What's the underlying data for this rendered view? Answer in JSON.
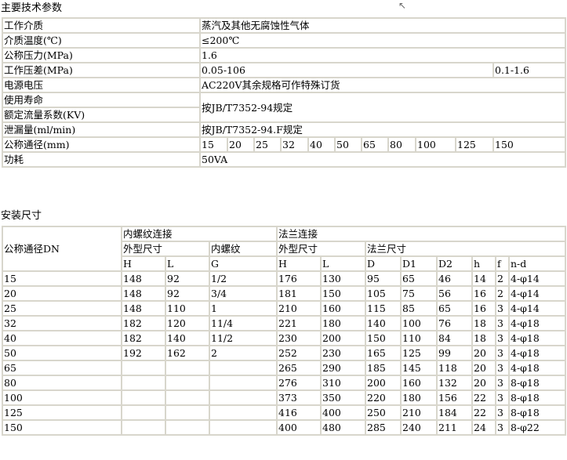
{
  "specs": {
    "title": "主要技术参数",
    "rows": [
      {
        "label": "工作介质",
        "value": "蒸汽及其他无腐蚀性气体"
      },
      {
        "label": "介质温度(℃)",
        "value": "≤200℃"
      },
      {
        "label": "公称压力(MPa)",
        "value": "1.6"
      },
      {
        "label": "工作压差(MPa)",
        "value": "0.05-106",
        "value2": "0.1-1.6"
      },
      {
        "label": "电源电压",
        "value": "AC220V其余规格可作特殊订货"
      },
      {
        "label": "使用寿命",
        "value": "按JB/T7352-94规定"
      },
      {
        "label": "额定流量系数(KV)"
      },
      {
        "label": "泄漏量(ml/min)",
        "value": "按JB/T7352-94.F规定"
      },
      {
        "label": "公称通径(mm)",
        "values": [
          "15",
          "20",
          "25",
          "32",
          "40",
          "50",
          "65",
          "80",
          "100",
          "125",
          "150"
        ]
      },
      {
        "label": "功耗",
        "value": "50VA"
      }
    ]
  },
  "install": {
    "title": "安装尺寸",
    "dn_header": "公称通径DN",
    "threaded": "内螺纹连接",
    "flanged": "法兰连接",
    "outline_size": "外型尺寸",
    "inner_thread": "内螺纹",
    "outline_size2": "外型尺寸",
    "flange_size": "法兰尺寸",
    "columns": [
      "H",
      "L",
      "G",
      "H",
      "L",
      "D",
      "D1",
      "D2",
      "h",
      "f",
      "n-d"
    ],
    "rows": [
      [
        "15",
        "148",
        "92",
        "1/2",
        "176",
        "130",
        "95",
        "65",
        "46",
        "14",
        "2",
        "4-φ14"
      ],
      [
        "20",
        "148",
        "92",
        "3/4",
        "181",
        "150",
        "105",
        "75",
        "56",
        "16",
        "2",
        "4-φ14"
      ],
      [
        "25",
        "148",
        "110",
        "1",
        "210",
        "160",
        "115",
        "85",
        "65",
        "16",
        "3",
        "4-φ14"
      ],
      [
        "32",
        "182",
        "120",
        "11/4",
        "221",
        "180",
        "140",
        "100",
        "76",
        "18",
        "3",
        "4-φ18"
      ],
      [
        "40",
        "182",
        "140",
        "11/2",
        "230",
        "200",
        "150",
        "110",
        "84",
        "18",
        "3",
        "4-φ18"
      ],
      [
        "50",
        "192",
        "162",
        "2",
        "252",
        "230",
        "165",
        "125",
        "99",
        "20",
        "3",
        "4-φ18"
      ],
      [
        "65",
        "",
        "",
        "",
        "265",
        "290",
        "185",
        "145",
        "118",
        "20",
        "3",
        "4-φ18"
      ],
      [
        "80",
        "",
        "",
        "",
        "276",
        "310",
        "200",
        "160",
        "132",
        "20",
        "3",
        "8-φ18"
      ],
      [
        "100",
        "",
        "",
        "",
        "373",
        "350",
        "220",
        "180",
        "156",
        "22",
        "3",
        "8-φ18"
      ],
      [
        "125",
        "",
        "",
        "",
        "416",
        "400",
        "250",
        "210",
        "184",
        "22",
        "3",
        "8-φ18"
      ],
      [
        "150",
        "",
        "",
        "",
        "400",
        "480",
        "285",
        "240",
        "211",
        "24",
        "3",
        "8-φ22"
      ]
    ]
  }
}
